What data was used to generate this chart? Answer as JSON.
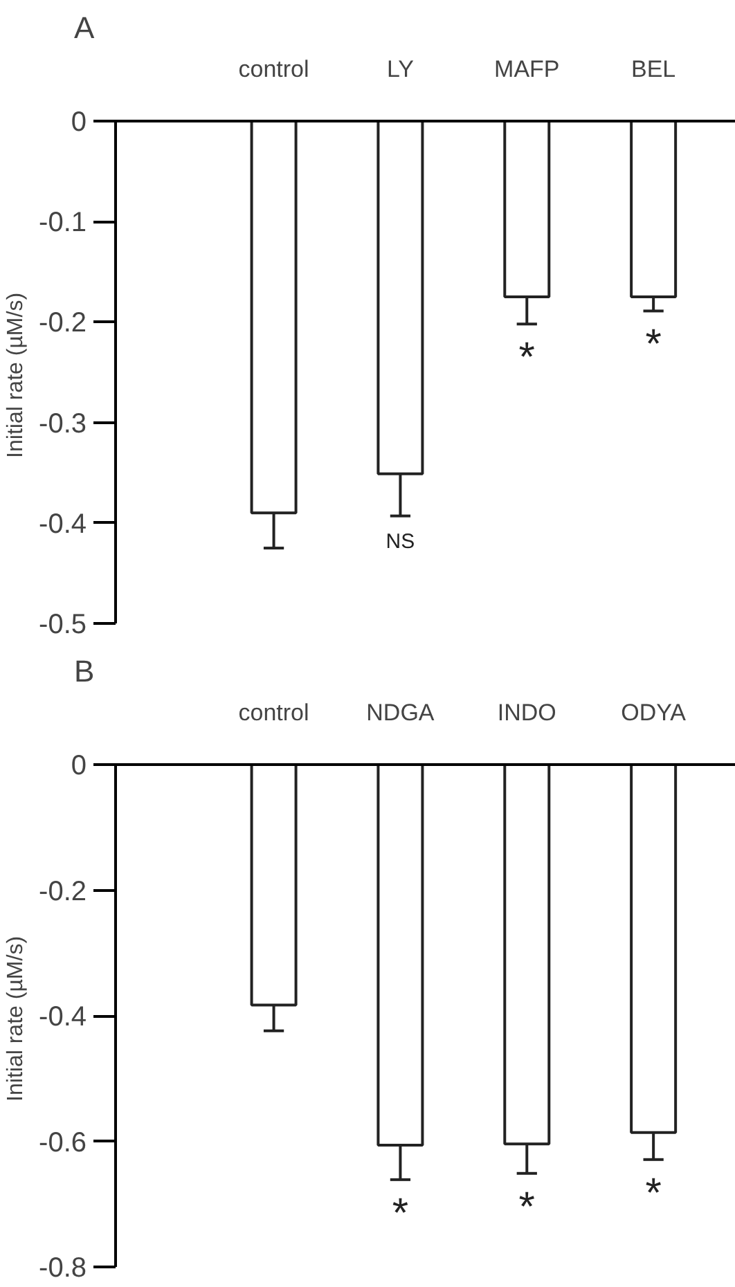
{
  "chart_data": [
    {
      "type": "bar",
      "title": "A",
      "ylabel": "Initial rate  (µM/s)",
      "categories": [
        "control",
        "LY",
        "MAFP",
        "BEL"
      ],
      "values": [
        -0.39,
        -0.351,
        -0.175,
        -0.175
      ],
      "color": "#ffffff",
      "errors": [
        [
          -0.425,
          -0.39
        ],
        [
          -0.393,
          -0.351
        ],
        [
          -0.202,
          -0.175
        ],
        [
          -0.189,
          -0.175
        ]
      ],
      "ylim": [
        -0.5,
        0
      ],
      "yticks": [
        0,
        -0.1,
        -0.2,
        -0.3,
        -0.4,
        -0.5
      ],
      "value_labels": [
        null,
        "NS",
        "*",
        "*"
      ]
    },
    {
      "type": "bar",
      "title": "B",
      "ylabel": "Initial rate  (µM/s)",
      "categories": [
        "control",
        "NDGA",
        "INDO",
        "ODYA"
      ],
      "values": [
        -0.383,
        -0.606,
        -0.604,
        -0.586
      ],
      "color": "#ffffff",
      "errors": [
        [
          -0.424,
          -0.383
        ],
        [
          -0.661,
          -0.606
        ],
        [
          -0.651,
          -0.604
        ],
        [
          -0.629,
          -0.586
        ]
      ],
      "ylim": [
        -0.8,
        0
      ],
      "yticks": [
        0,
        -0.2,
        -0.4,
        -0.6,
        -0.8
      ],
      "value_labels": [
        null,
        "*",
        "*",
        "*"
      ]
    }
  ]
}
